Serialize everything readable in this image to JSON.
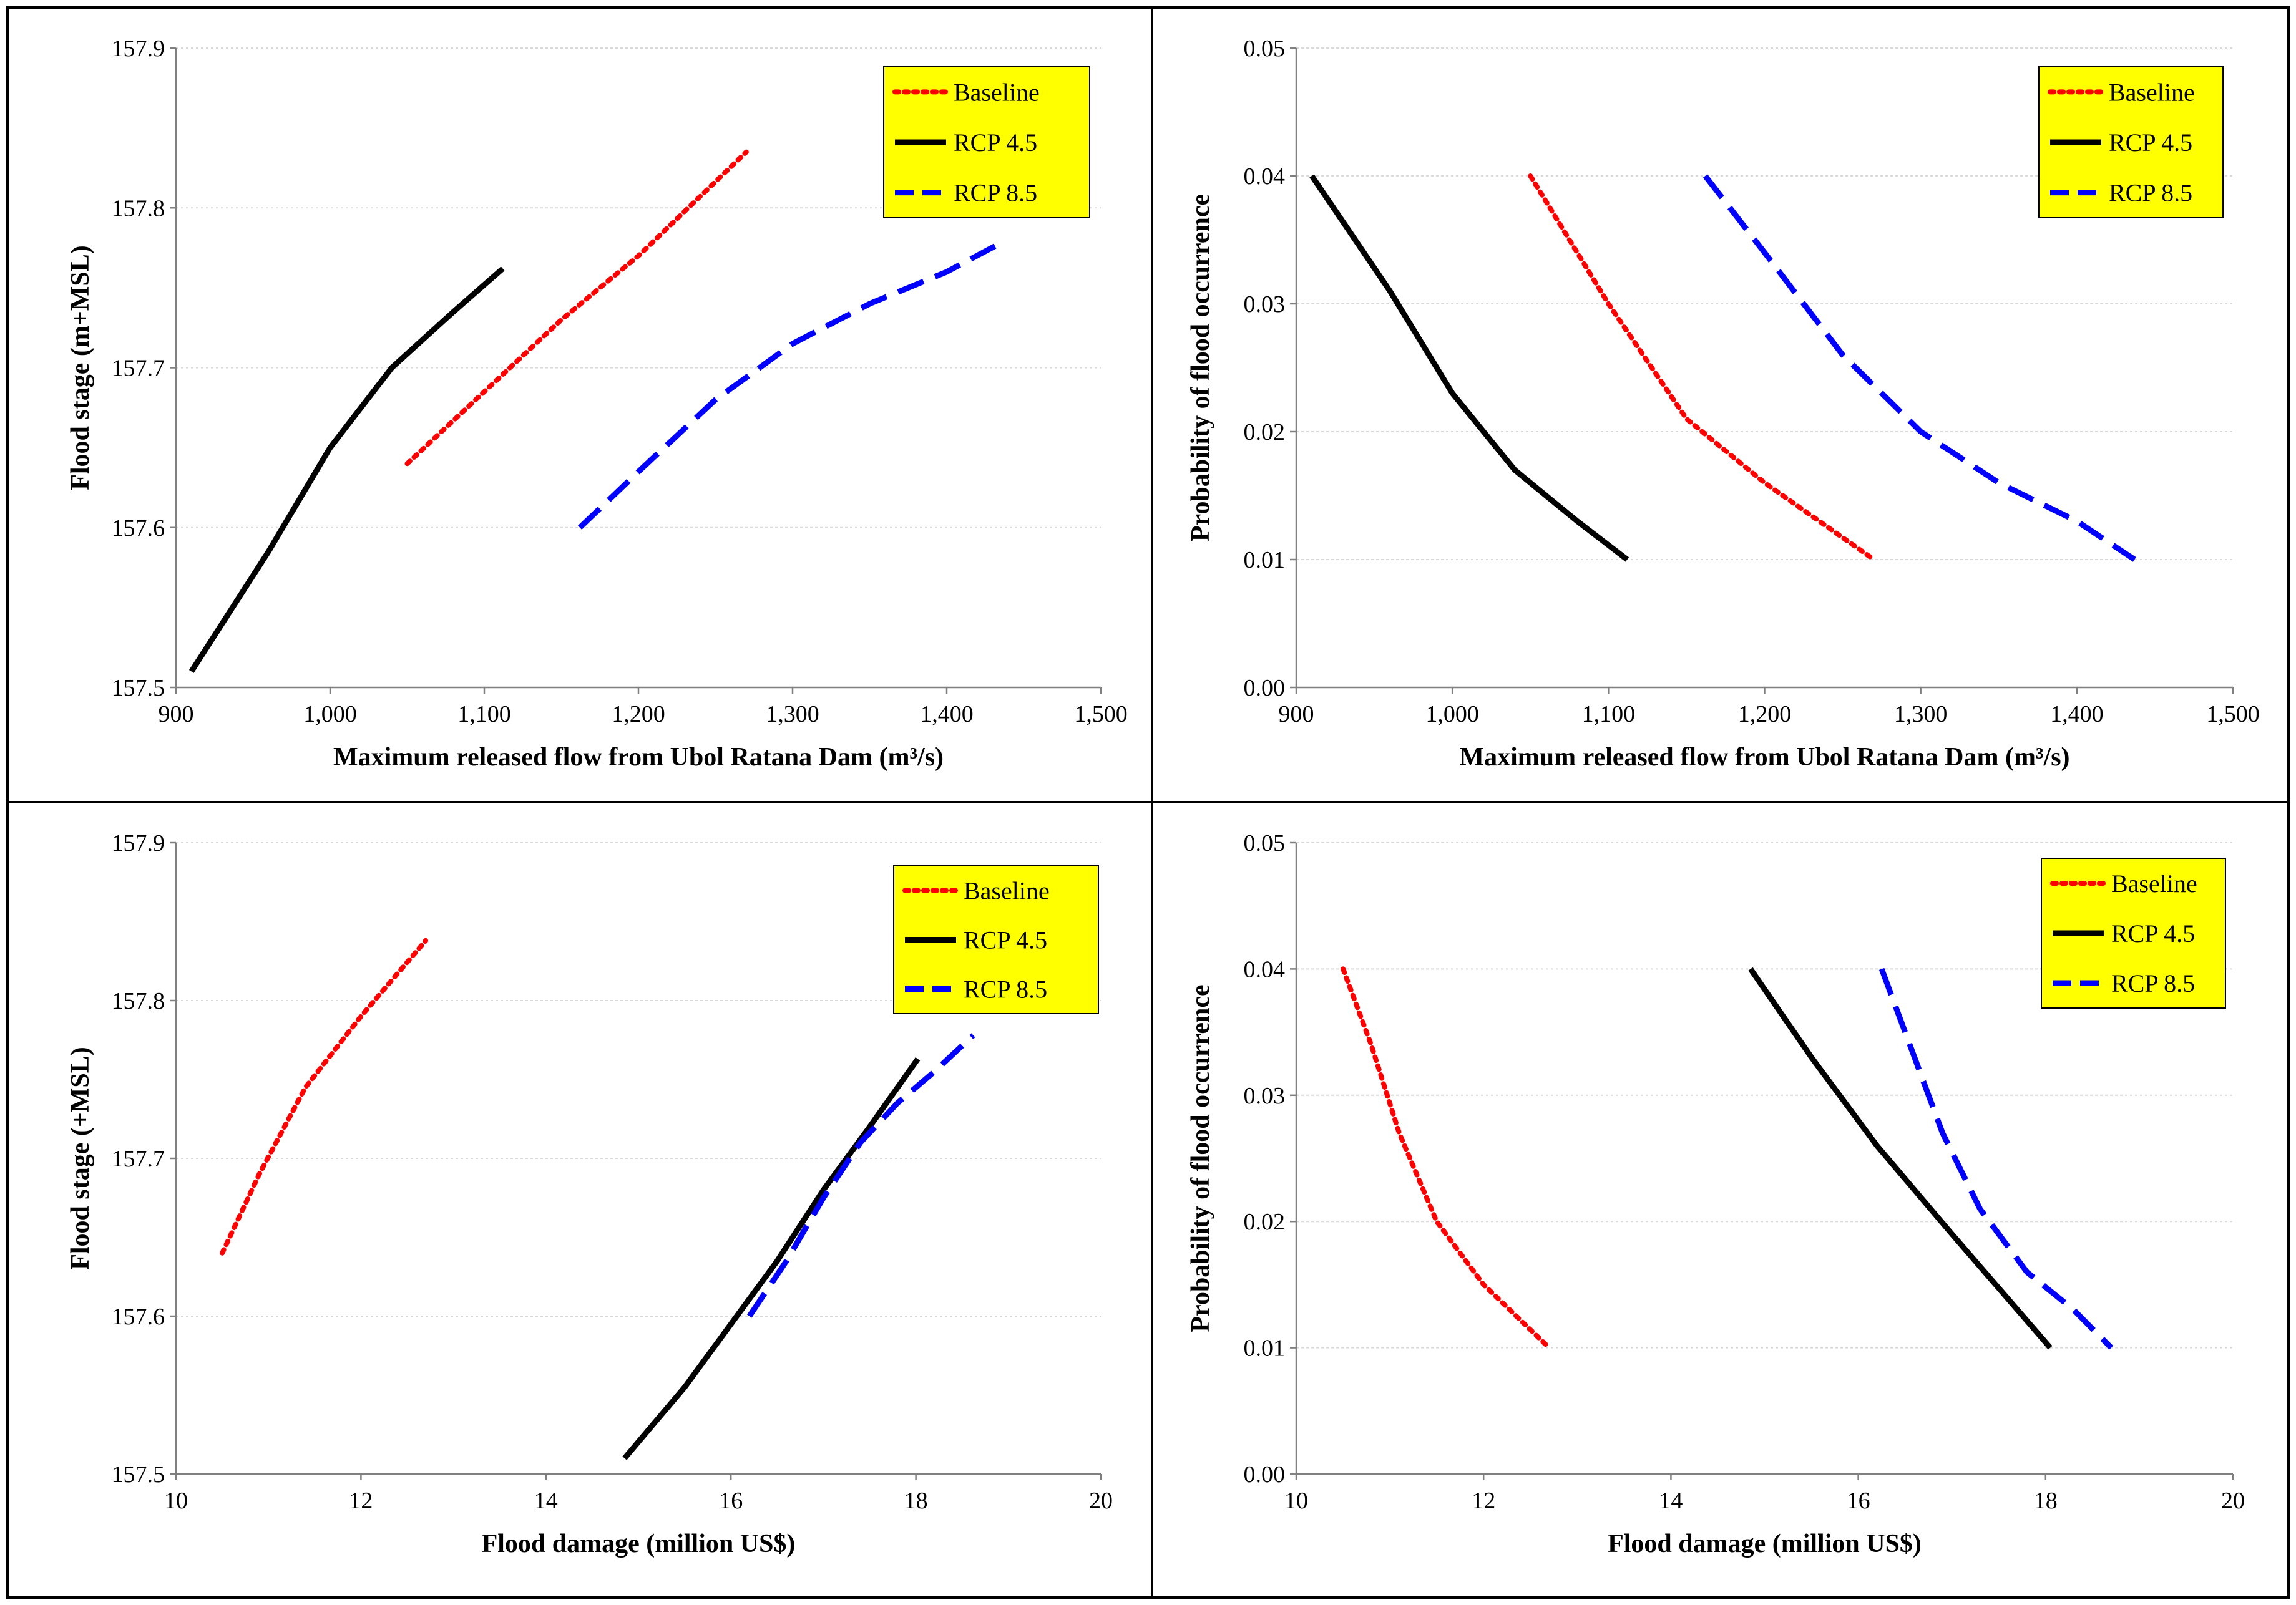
{
  "colors": {
    "baseline": "#ff0000",
    "rcp45": "#000000",
    "rcp85": "#0000ff",
    "legend_bg": "#ffff00"
  },
  "chart_data": [
    {
      "type": "line",
      "xlabel": "Maximum released flow from Ubol Ratana Dam (m³/s)",
      "ylabel": "Flood stage (m+MSL)",
      "xlim": [
        900,
        1500
      ],
      "ylim": [
        157.5,
        157.9
      ],
      "xticks": [
        900,
        1000,
        1100,
        1200,
        1300,
        1400,
        1500
      ],
      "xtick_labels": [
        "900",
        "1,000",
        "1,100",
        "1,200",
        "1,300",
        "1,400",
        "1,500"
      ],
      "yticks": [
        157.5,
        157.6,
        157.7,
        157.8,
        157.9
      ],
      "ytick_labels": [
        "157.5",
        "157.6",
        "157.7",
        "157.8",
        "157.9"
      ],
      "legend": "top-right",
      "series": [
        {
          "name": "Baseline",
          "style": "dotted",
          "x": [
            1050,
            1100,
            1150,
            1200,
            1270
          ],
          "y": [
            157.64,
            157.685,
            157.73,
            157.77,
            157.835
          ]
        },
        {
          "name": "RCP 4.5",
          "style": "solid",
          "x": [
            910,
            960,
            1000,
            1040,
            1080,
            1112
          ],
          "y": [
            157.51,
            157.585,
            157.65,
            157.7,
            157.735,
            157.762
          ]
        },
        {
          "name": "RCP 8.5",
          "style": "dashed",
          "x": [
            1162,
            1200,
            1250,
            1300,
            1350,
            1400,
            1435
          ],
          "y": [
            157.6,
            157.635,
            157.68,
            157.715,
            157.74,
            157.76,
            157.778
          ]
        }
      ]
    },
    {
      "type": "line",
      "xlabel": "Maximum released flow from Ubol Ratana Dam (m³/s)",
      "ylabel": "Probability of flood occurrence",
      "xlim": [
        900,
        1500
      ],
      "ylim": [
        0,
        0.05
      ],
      "xticks": [
        900,
        1000,
        1100,
        1200,
        1300,
        1400,
        1500
      ],
      "xtick_labels": [
        "900",
        "1,000",
        "1,100",
        "1,200",
        "1,300",
        "1,400",
        "1,500"
      ],
      "yticks": [
        0,
        0.01,
        0.02,
        0.03,
        0.04,
        0.05
      ],
      "ytick_labels": [
        "0.00",
        "0.01",
        "0.02",
        "0.03",
        "0.04",
        "0.05"
      ],
      "legend": "top-right",
      "series": [
        {
          "name": "Baseline",
          "style": "dotted",
          "x": [
            1050,
            1100,
            1150,
            1200,
            1270
          ],
          "y": [
            0.04,
            0.03,
            0.021,
            0.016,
            0.01
          ]
        },
        {
          "name": "RCP 4.5",
          "style": "solid",
          "x": [
            910,
            960,
            1000,
            1040,
            1080,
            1112
          ],
          "y": [
            0.04,
            0.031,
            0.023,
            0.017,
            0.013,
            0.01
          ]
        },
        {
          "name": "RCP 8.5",
          "style": "dashed",
          "x": [
            1162,
            1200,
            1250,
            1300,
            1350,
            1400,
            1437
          ],
          "y": [
            0.04,
            0.034,
            0.026,
            0.02,
            0.016,
            0.013,
            0.01
          ]
        }
      ]
    },
    {
      "type": "line",
      "xlabel": "Flood damage (million US$)",
      "ylabel": "Flood stage (+MSL)",
      "xlim": [
        10,
        20
      ],
      "ylim": [
        157.5,
        157.9
      ],
      "xticks": [
        10,
        12,
        14,
        16,
        18,
        20
      ],
      "xtick_labels": [
        "10",
        "12",
        "14",
        "16",
        "18",
        "20"
      ],
      "yticks": [
        157.5,
        157.6,
        157.7,
        157.8,
        157.9
      ],
      "ytick_labels": [
        "157.5",
        "157.6",
        "157.7",
        "157.8",
        "157.9"
      ],
      "legend": "top-right",
      "series": [
        {
          "name": "Baseline",
          "style": "dotted",
          "x": [
            10.5,
            10.9,
            11.4,
            12.0,
            12.7
          ],
          "y": [
            157.64,
            157.69,
            157.745,
            157.79,
            157.838
          ]
        },
        {
          "name": "RCP 4.5",
          "style": "solid",
          "x": [
            14.85,
            15.5,
            16.0,
            16.5,
            17.0,
            17.5,
            18.02
          ],
          "y": [
            157.51,
            157.555,
            157.595,
            157.635,
            157.68,
            157.72,
            157.763
          ]
        },
        {
          "name": "RCP 8.5",
          "style": "dashed",
          "x": [
            16.2,
            16.6,
            17.0,
            17.4,
            17.8,
            18.2,
            18.62
          ],
          "y": [
            157.6,
            157.635,
            157.675,
            157.71,
            157.735,
            157.755,
            157.778
          ]
        }
      ]
    },
    {
      "type": "line",
      "xlabel": "Flood damage (million US$)",
      "ylabel": "Probability of flood occurrence",
      "xlim": [
        10,
        20
      ],
      "ylim": [
        0,
        0.05
      ],
      "xticks": [
        10,
        12,
        14,
        16,
        18,
        20
      ],
      "xtick_labels": [
        "10",
        "12",
        "14",
        "16",
        "18",
        "20"
      ],
      "yticks": [
        0,
        0.01,
        0.02,
        0.03,
        0.04,
        0.05
      ],
      "ytick_labels": [
        "0.00",
        "0.01",
        "0.02",
        "0.03",
        "0.04",
        "0.05"
      ],
      "legend": "top-right",
      "series": [
        {
          "name": "Baseline",
          "style": "dotted",
          "x": [
            10.5,
            10.8,
            11.1,
            11.5,
            12.0,
            12.7
          ],
          "y": [
            0.04,
            0.034,
            0.027,
            0.02,
            0.015,
            0.01
          ]
        },
        {
          "name": "RCP 4.5",
          "style": "solid",
          "x": [
            14.85,
            15.5,
            16.2,
            17.0,
            18.05
          ],
          "y": [
            0.04,
            0.033,
            0.026,
            0.019,
            0.01
          ]
        },
        {
          "name": "RCP 8.5",
          "style": "dashed",
          "x": [
            16.25,
            16.6,
            16.9,
            17.3,
            17.8,
            18.3,
            18.7
          ],
          "y": [
            0.04,
            0.033,
            0.027,
            0.021,
            0.016,
            0.013,
            0.01
          ]
        }
      ]
    }
  ]
}
